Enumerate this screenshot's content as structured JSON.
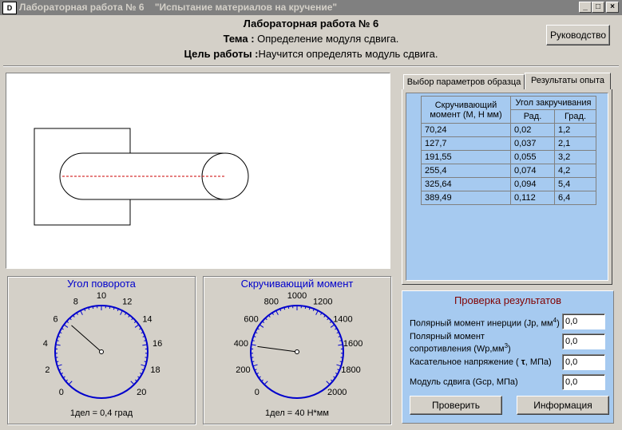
{
  "window": {
    "title": "Лабораторная работа № 6    \"Испытание материалов на кручение\"",
    "icon_text": "D",
    "minimize": "_",
    "maximize": "□",
    "close": "×"
  },
  "header": {
    "title": "Лабораторная работа № 6",
    "topic_label": "Тема :",
    "topic_text": " Определение модуля сдвига.",
    "goal_label": "Цель работы :",
    "goal_text": "Научится определять модуль сдвига."
  },
  "manual_button": "Руководство",
  "tabs": [
    {
      "label": "Выбор параметров образца",
      "active": false
    },
    {
      "label": "Результаты опыта",
      "active": true
    }
  ],
  "results_table": {
    "col_moment": "Скручивающий момент (М, Н мм)",
    "col_angle": "Угол закручивания",
    "col_rad": "Рад.",
    "col_deg": "Град.",
    "rows": [
      {
        "moment": "70,24",
        "rad": "0,02",
        "deg": "1,2"
      },
      {
        "moment": "127,7",
        "rad": "0,037",
        "deg": "2,1"
      },
      {
        "moment": "191,55",
        "rad": "0,055",
        "deg": "3,2"
      },
      {
        "moment": "255,4",
        "rad": "0,074",
        "deg": "4,2"
      },
      {
        "moment": "325,64",
        "rad": "0,094",
        "deg": "5,4"
      },
      {
        "moment": "389,49",
        "rad": "0,112",
        "deg": "6,4"
      }
    ]
  },
  "gauge_angle": {
    "title": "Угол поворота",
    "labels": [
      "0",
      "2",
      "4",
      "6",
      "8",
      "10",
      "12",
      "14",
      "16",
      "18",
      "20"
    ],
    "division": "1дел = 0,4 град",
    "needle_value": 6.4
  },
  "gauge_moment": {
    "title": "Скручивающий момент",
    "labels": [
      "0",
      "200",
      "400",
      "600",
      "800",
      "1000",
      "1200",
      "1400",
      "1600",
      "1800",
      "2000"
    ],
    "division": "1дел = 40 Н*мм",
    "needle_value": 390
  },
  "check": {
    "title": "Проверка результатов",
    "polar_inertia_label": "Полярный момент инерции (Jp, мм",
    "polar_inertia_sup": "4",
    "polar_inertia_end": ")",
    "polar_inertia_value": "0,0",
    "polar_resist_label_1": "Полярный момент",
    "polar_resist_label_2": "сопротивления (Wp,мм",
    "polar_resist_sup": "3",
    "polar_resist_end": ")",
    "polar_resist_value": "0,0",
    "shear_stress_label": "Касательное напряжение ( ",
    "shear_stress_symbol": "τ",
    "shear_stress_end": ", МПа)",
    "shear_stress_value": "0,0",
    "shear_modulus_label": "Модуль сдвига (Gср, МПа)",
    "shear_modulus_value": "0,0",
    "verify_button": "Проверить",
    "info_button": "Информация"
  },
  "colors": {
    "accent": "#0000cc",
    "title_red": "#800000",
    "panel_blue": "#a6caf0",
    "specimen_axis": "#cc0000"
  }
}
